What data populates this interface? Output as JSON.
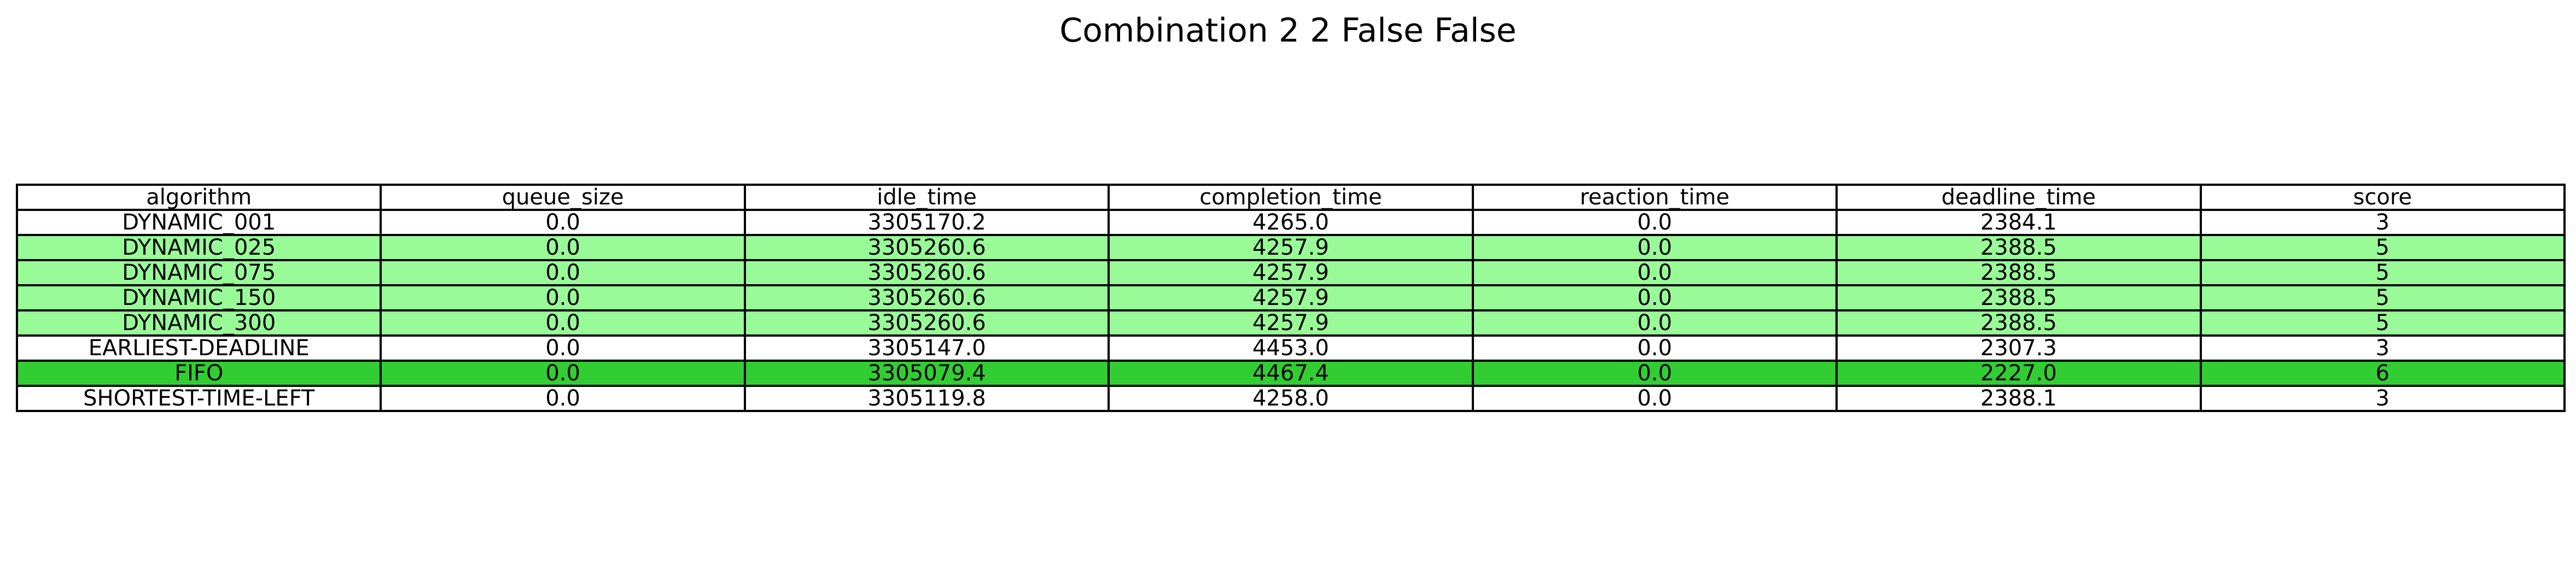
{
  "title": "Combination 2 2 False False",
  "colors": {
    "best_row": "#32cd32",
    "good_row": "#98fb98",
    "default_row": "#ffffff",
    "border": "#000000"
  },
  "chart_data": {
    "type": "table",
    "title": "Combination 2 2 False False",
    "columns": [
      "algorithm",
      "queue_size",
      "idle_time",
      "completion_time",
      "reaction_time",
      "deadline_time",
      "score"
    ],
    "rows": [
      {
        "cells": [
          "DYNAMIC_001",
          "0.0",
          "3305170.2",
          "4265.0",
          "0.0",
          "2384.1",
          "3"
        ],
        "highlight": "none"
      },
      {
        "cells": [
          "DYNAMIC_025",
          "0.0",
          "3305260.6",
          "4257.9",
          "0.0",
          "2388.5",
          "5"
        ],
        "highlight": "good"
      },
      {
        "cells": [
          "DYNAMIC_075",
          "0.0",
          "3305260.6",
          "4257.9",
          "0.0",
          "2388.5",
          "5"
        ],
        "highlight": "good"
      },
      {
        "cells": [
          "DYNAMIC_150",
          "0.0",
          "3305260.6",
          "4257.9",
          "0.0",
          "2388.5",
          "5"
        ],
        "highlight": "good"
      },
      {
        "cells": [
          "DYNAMIC_300",
          "0.0",
          "3305260.6",
          "4257.9",
          "0.0",
          "2388.5",
          "5"
        ],
        "highlight": "good"
      },
      {
        "cells": [
          "EARLIEST-DEADLINE",
          "0.0",
          "3305147.0",
          "4453.0",
          "0.0",
          "2307.3",
          "3"
        ],
        "highlight": "none"
      },
      {
        "cells": [
          "FIFO",
          "0.0",
          "3305079.4",
          "4467.4",
          "0.0",
          "2227.0",
          "6"
        ],
        "highlight": "best"
      },
      {
        "cells": [
          "SHORTEST-TIME-LEFT",
          "0.0",
          "3305119.8",
          "4258.0",
          "0.0",
          "2388.1",
          "3"
        ],
        "highlight": "none"
      }
    ]
  }
}
